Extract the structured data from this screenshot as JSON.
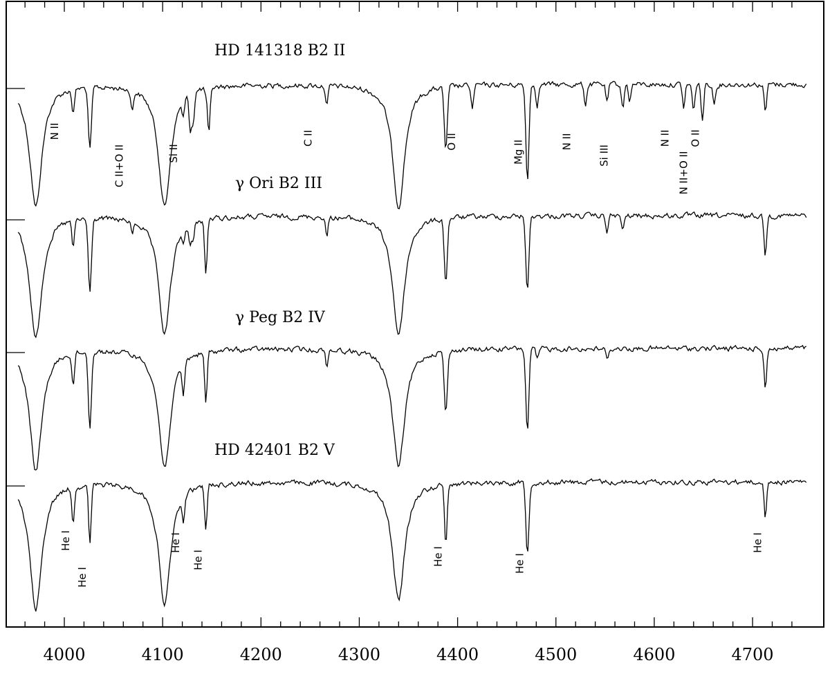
{
  "chart_data": {
    "type": "line",
    "xlabel": "",
    "ylabel": "",
    "xlim": [
      3950,
      4760
    ],
    "x_ticks": [
      4000,
      4100,
      4200,
      4300,
      4400,
      4500,
      4600,
      4700
    ],
    "x_tick_labels": [
      "4000",
      "4100",
      "4200",
      "4300",
      "4400",
      "4500",
      "4600",
      "4700"
    ],
    "grid": false,
    "series": [
      {
        "name": "HD 141318  B2 II",
        "baseline": 0,
        "lines": [
          [
            3971,
            0.62
          ],
          [
            4009,
            0.12
          ],
          [
            4026,
            0.32
          ],
          [
            4069,
            0.1
          ],
          [
            4102,
            0.62
          ],
          [
            4121,
            0.08
          ],
          [
            4128,
            0.18
          ],
          [
            4131,
            0.15
          ],
          [
            4144,
            0.03
          ],
          [
            4147,
            0.24
          ],
          [
            4267,
            0.1
          ],
          [
            4340,
            0.62
          ],
          [
            4388,
            0.32
          ],
          [
            4415,
            0.12
          ],
          [
            4471,
            0.48
          ],
          [
            4481,
            0.1
          ],
          [
            4530,
            0.1
          ],
          [
            4552,
            0.09
          ],
          [
            4568,
            0.12
          ],
          [
            4575,
            0.08
          ],
          [
            4630,
            0.12
          ],
          [
            4640,
            0.14
          ],
          [
            4649,
            0.18
          ],
          [
            4661,
            0.1
          ],
          [
            4713,
            0.14
          ]
        ]
      },
      {
        "name": "γ Ori  B2 III",
        "baseline": 0,
        "lines": [
          [
            3971,
            0.62
          ],
          [
            4009,
            0.14
          ],
          [
            4026,
            0.38
          ],
          [
            4069,
            0.06
          ],
          [
            4102,
            0.6
          ],
          [
            4121,
            0.06
          ],
          [
            4128,
            0.1
          ],
          [
            4131,
            0.09
          ],
          [
            4144,
            0.28
          ],
          [
            4267,
            0.1
          ],
          [
            4340,
            0.6
          ],
          [
            4388,
            0.32
          ],
          [
            4471,
            0.38
          ],
          [
            4552,
            0.08
          ],
          [
            4568,
            0.08
          ],
          [
            4713,
            0.2
          ]
        ]
      },
      {
        "name": "γ Peg  B2 IV",
        "baseline": 0,
        "lines": [
          [
            3971,
            0.62
          ],
          [
            4009,
            0.16
          ],
          [
            4026,
            0.38
          ],
          [
            4102,
            0.6
          ],
          [
            4121,
            0.16
          ],
          [
            4144,
            0.26
          ],
          [
            4267,
            0.08
          ],
          [
            4340,
            0.6
          ],
          [
            4388,
            0.32
          ],
          [
            4471,
            0.42
          ],
          [
            4481,
            0.06
          ],
          [
            4552,
            0.06
          ],
          [
            4713,
            0.2
          ]
        ]
      },
      {
        "name": "HD 42401  B2 V",
        "baseline": 0,
        "lines": [
          [
            3971,
            0.65
          ],
          [
            4009,
            0.18
          ],
          [
            4026,
            0.3
          ],
          [
            4102,
            0.62
          ],
          [
            4121,
            0.12
          ],
          [
            4144,
            0.22
          ],
          [
            4340,
            0.6
          ],
          [
            4388,
            0.3
          ],
          [
            4471,
            0.36
          ],
          [
            4713,
            0.18
          ]
        ]
      }
    ],
    "annotations": [
      {
        "text": "N II",
        "x": 4009,
        "series": 0
      },
      {
        "text": "C II+O II",
        "x": 4075,
        "series": 0
      },
      {
        "text": "Si II",
        "x": 4130,
        "series": 0
      },
      {
        "text": "C II",
        "x": 4267,
        "series": 0
      },
      {
        "text": "O II",
        "x": 4413,
        "series": 0
      },
      {
        "text": "Mg II",
        "x": 4481,
        "series": 0
      },
      {
        "text": "N II",
        "x": 4530,
        "series": 0
      },
      {
        "text": "Si III",
        "x": 4568,
        "series": 0
      },
      {
        "text": "N II",
        "x": 4630,
        "series": 0
      },
      {
        "text": "N II+O II",
        "x": 4649,
        "series": 0
      },
      {
        "text": "O II",
        "x": 4661,
        "series": 0
      },
      {
        "text": "He I",
        "x": 4009,
        "series": 3
      },
      {
        "text": "He I",
        "x": 4026,
        "series": 3
      },
      {
        "text": "He I",
        "x": 4121,
        "series": 3
      },
      {
        "text": "He I",
        "x": 4144,
        "series": 3
      },
      {
        "text": "He I",
        "x": 4388,
        "series": 3
      },
      {
        "text": "He I",
        "x": 4471,
        "series": 3
      },
      {
        "text": "He I",
        "x": 4713,
        "series": 3
      }
    ]
  }
}
